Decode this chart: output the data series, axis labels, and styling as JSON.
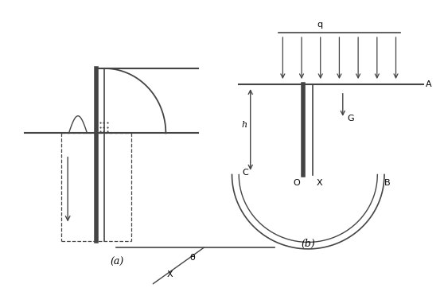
{
  "bg_color": "#ffffff",
  "line_color": "#444444",
  "fig_width": 5.58,
  "fig_height": 3.62,
  "dpi": 100,
  "label_a": "A",
  "label_b": "B",
  "label_c": "C",
  "label_g": "G",
  "label_o": "O",
  "label_x": "X",
  "label_h": "h",
  "label_q": "q",
  "label_theta": "θ",
  "label_x2": "X",
  "label_a_fig": "(a)",
  "label_b_fig": "(b)"
}
